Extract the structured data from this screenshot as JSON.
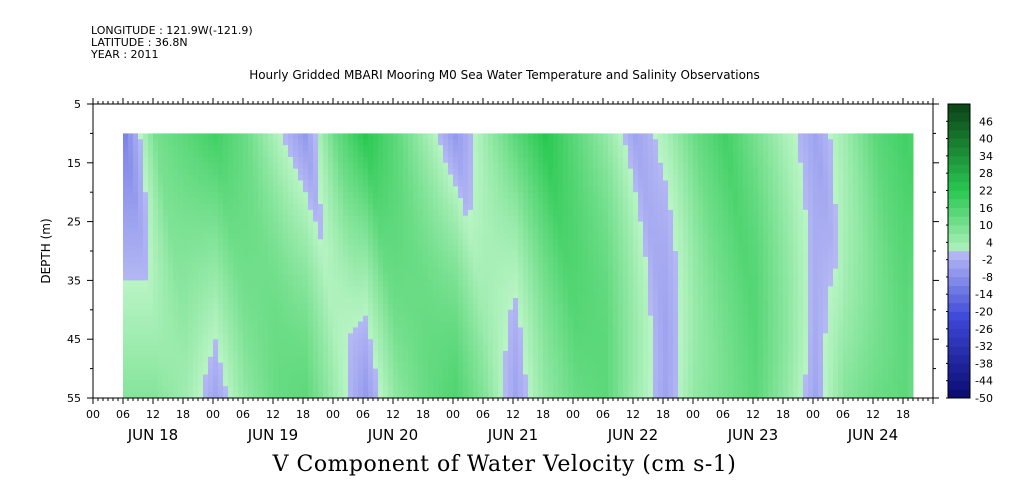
{
  "header": {
    "longitude": "LONGITUDE : 121.9W(-121.9)",
    "latitude": "LATITUDE : 36.8N",
    "year": "YEAR : 2011"
  },
  "chart_data": {
    "type": "heatmap",
    "title": "Hourly Gridded MBARI Mooring M0 Sea Water Temperature and Salinity Observations",
    "xlabel": "V Component of Water Velocity (cm s-1)",
    "ylabel": "DEPTH (m)",
    "y_ticks": [
      5,
      15,
      25,
      35,
      45,
      55
    ],
    "y_range": [
      5,
      55
    ],
    "y_inverted": true,
    "data_depth_range": [
      10,
      55
    ],
    "x_range_hours": [
      0,
      168
    ],
    "data_start_hour": 6,
    "data_end_hour": 164,
    "x_hour_labels": [
      "00",
      "06",
      "12",
      "18"
    ],
    "x_day_labels": [
      "JUN 18",
      "JUN 19",
      "JUN 20",
      "JUN 21",
      "JUN 22",
      "JUN 23",
      "JUN 24"
    ],
    "colorbar_labels": [
      "46",
      "40",
      "34",
      "28",
      "22",
      "16",
      "10",
      "4",
      "-2",
      "-8",
      "-14",
      "-20",
      "-26",
      "-32",
      "-38",
      "-44",
      "-50"
    ],
    "colorbar_range": [
      -50,
      52
    ],
    "colorbar_step": 3,
    "colormap": {
      "negative_low": "#0a0a70",
      "negative_mid": "#3c48d8",
      "negative_high": "#b4b8f4",
      "positive_low": "#b8f4c4",
      "positive_mid": "#28c850",
      "positive_high": "#0c4a1a"
    },
    "hourly_surface_v": [
      -10,
      10,
      14,
      18,
      12,
      2,
      -6,
      12,
      22,
      14,
      4,
      -6,
      4,
      14,
      22,
      14,
      6,
      -4,
      2,
      12,
      18,
      10,
      2,
      -4,
      4,
      14,
      18,
      12,
      4,
      -6
    ],
    "hourly_deep_v": [
      8,
      8,
      4,
      -4,
      6,
      12,
      14,
      4,
      -6,
      6,
      12,
      16,
      8,
      -4,
      6,
      12,
      14,
      4,
      -4,
      6,
      10,
      14,
      6,
      -4,
      8,
      12,
      14,
      4,
      -8,
      10
    ]
  }
}
